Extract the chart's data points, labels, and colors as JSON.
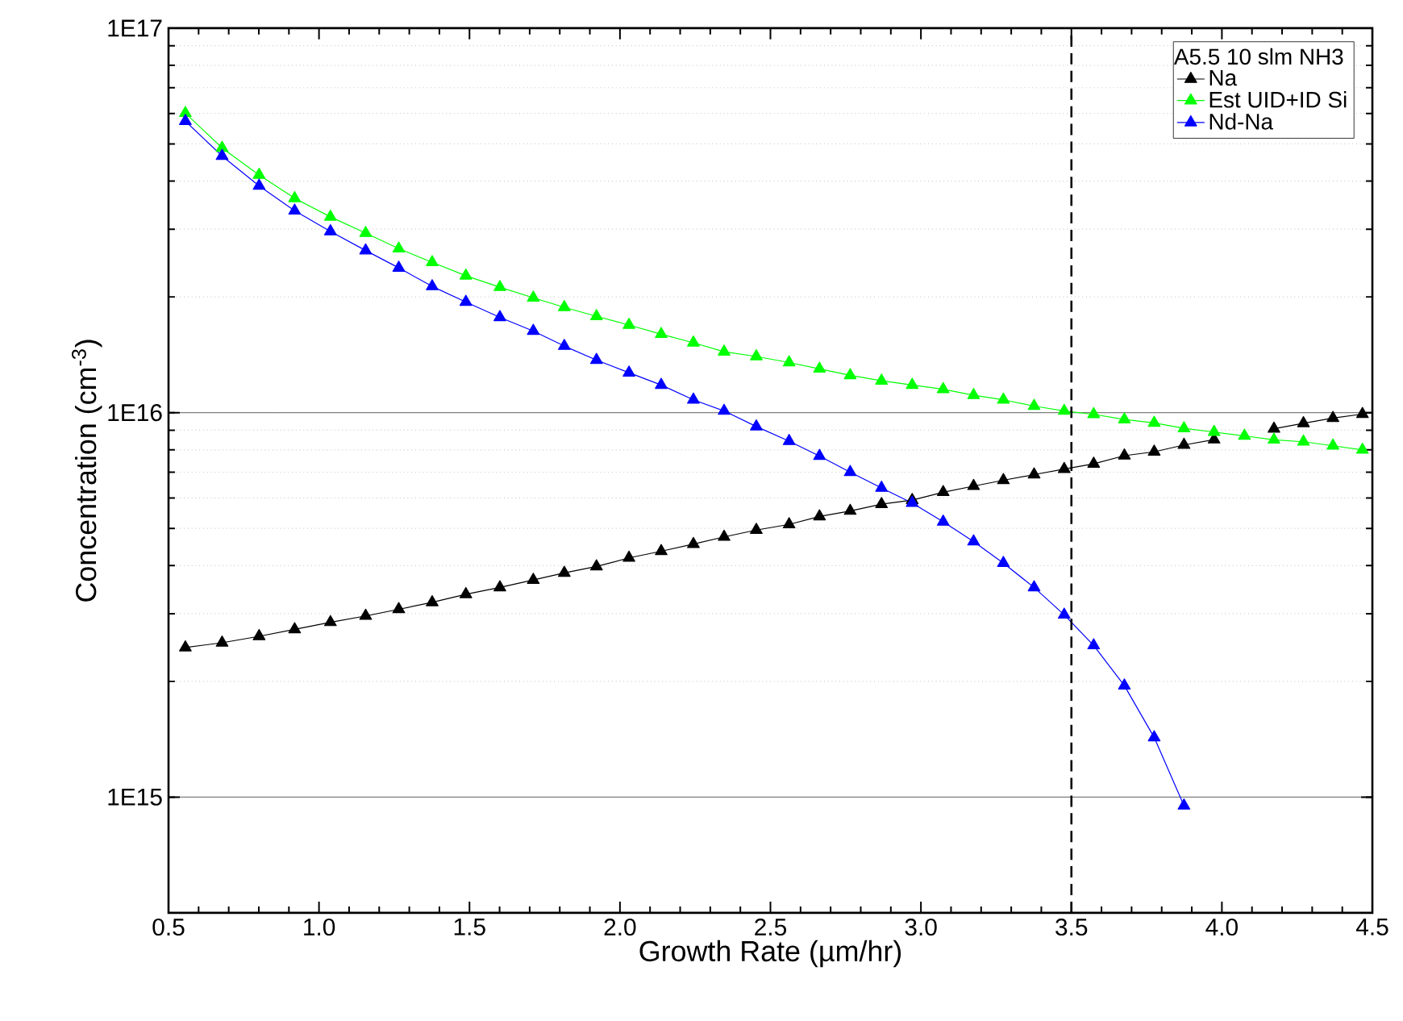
{
  "chart_data": {
    "type": "line",
    "xlabel": "Growth Rate (µm/hr)",
    "ylabel": "Concentration (cm$^{-3}$)",
    "legend_title": "A5.5 10 slm NH3",
    "x": [
      0.556,
      0.678,
      0.801,
      0.919,
      1.038,
      1.155,
      1.265,
      1.376,
      1.488,
      1.601,
      1.712,
      1.815,
      1.922,
      2.03,
      2.137,
      2.244,
      2.346,
      2.453,
      2.562,
      2.663,
      2.765,
      2.869,
      2.971,
      3.074,
      3.175,
      3.274,
      3.376,
      3.476,
      3.574,
      3.676,
      3.775,
      3.874,
      3.974,
      4.075,
      4.173,
      4.271,
      4.369,
      4.467
    ],
    "series": [
      {
        "name": "Na",
        "color": "#000000",
        "values": [
          2450000000000000.0,
          2520000000000000.0,
          2620000000000000.0,
          2730000000000000.0,
          2850000000000000.0,
          2960000000000000.0,
          3080000000000000.0,
          3210000000000000.0,
          3370000000000000.0,
          3510000000000000.0,
          3670000000000000.0,
          3830000000000000.0,
          3980000000000000.0,
          4190000000000000.0,
          4360000000000000.0,
          4550000000000000.0,
          4750000000000000.0,
          4950000000000000.0,
          5120000000000000.0,
          5370000000000000.0,
          5550000000000000.0,
          5780000000000000.0,
          5920000000000000.0,
          6210000000000000.0,
          6440000000000000.0,
          6670000000000000.0,
          6900000000000000.0,
          7130000000000000.0,
          7360000000000000.0,
          7730000000000000.0,
          7910000000000000.0,
          8240000000000000.0,
          8510000000000000.0,
          null,
          9080000000000000.0,
          9380000000000000.0,
          9680000000000000.0,
          9910000000000000.0
        ]
      },
      {
        "name": "Est UID+ID Si",
        "color": "#00ff00",
        "values": [
          6.01e+16,
          4.88e+16,
          4.15e+16,
          3.61e+16,
          3.23e+16,
          2.93e+16,
          2.67e+16,
          2.46e+16,
          2.27e+16,
          2.12e+16,
          1.99e+16,
          1.88e+16,
          1.78e+16,
          1.69e+16,
          1.6e+16,
          1.52e+16,
          1.44e+16,
          1.4e+16,
          1.35e+16,
          1.3e+16,
          1.25e+16,
          1.21e+16,
          1.18e+16,
          1.15e+16,
          1.11e+16,
          1.08e+16,
          1.04e+16,
          1.01e+16,
          9900000000000000.0,
          9600000000000000.0,
          9400000000000000.0,
          9100000000000000.0,
          8900000000000000.0,
          8700000000000000.0,
          8500000000000000.0,
          8400000000000000.0,
          8200000000000000.0,
          8000000000000000.0
        ]
      },
      {
        "name": "Nd-Na",
        "color": "#0000ff",
        "values": [
          5.73e+16,
          4.65e+16,
          3.89e+16,
          3.35e+16,
          2.96e+16,
          2.64e+16,
          2.38e+16,
          2.13e+16,
          1.94e+16,
          1.77e+16,
          1.63e+16,
          1.49e+16,
          1.37e+16,
          1.27e+16,
          1.18e+16,
          1.08e+16,
          1.01e+16,
          9200000000000000.0,
          8430000000000000.0,
          7710000000000000.0,
          7000000000000000.0,
          6370000000000000.0,
          5820000000000000.0,
          5200000000000000.0,
          4620000000000000.0,
          4060000000000000.0,
          3510000000000000.0,
          2980000000000000.0,
          2480000000000000.0,
          1950000000000000.0,
          1430000000000000.0,
          950000000000000.0,
          null,
          null,
          null,
          null,
          null,
          null
        ]
      }
    ],
    "xlim": [
      0.5,
      4.5
    ],
    "xticks": [
      {
        "value": 0.5,
        "label": "0.5"
      },
      {
        "value": 1.0,
        "label": "1.0"
      },
      {
        "value": 1.5,
        "label": "1.5"
      },
      {
        "value": 2.0,
        "label": "2.0"
      },
      {
        "value": 2.5,
        "label": "2.5"
      },
      {
        "value": 3.0,
        "label": "3.0"
      },
      {
        "value": 3.5,
        "label": "3.5"
      },
      {
        "value": 4.0,
        "label": "4.0"
      },
      {
        "value": 4.5,
        "label": "4.5"
      }
    ],
    "ylim": [
      500000000000000.0,
      1e+17
    ],
    "yticks": [
      {
        "value": 1000000000000000.0,
        "label": "1E15"
      },
      {
        "value": 1e+16,
        "label": "1E16"
      },
      {
        "value": 1e+17,
        "label": "1E17"
      }
    ],
    "log": "y",
    "grid": "y",
    "legend": "top right",
    "marker": "triangle",
    "ref_lines": [
      {
        "axis": "x",
        "value": 3.5,
        "color": "#000000",
        "line_style": "dashed"
      }
    ]
  }
}
